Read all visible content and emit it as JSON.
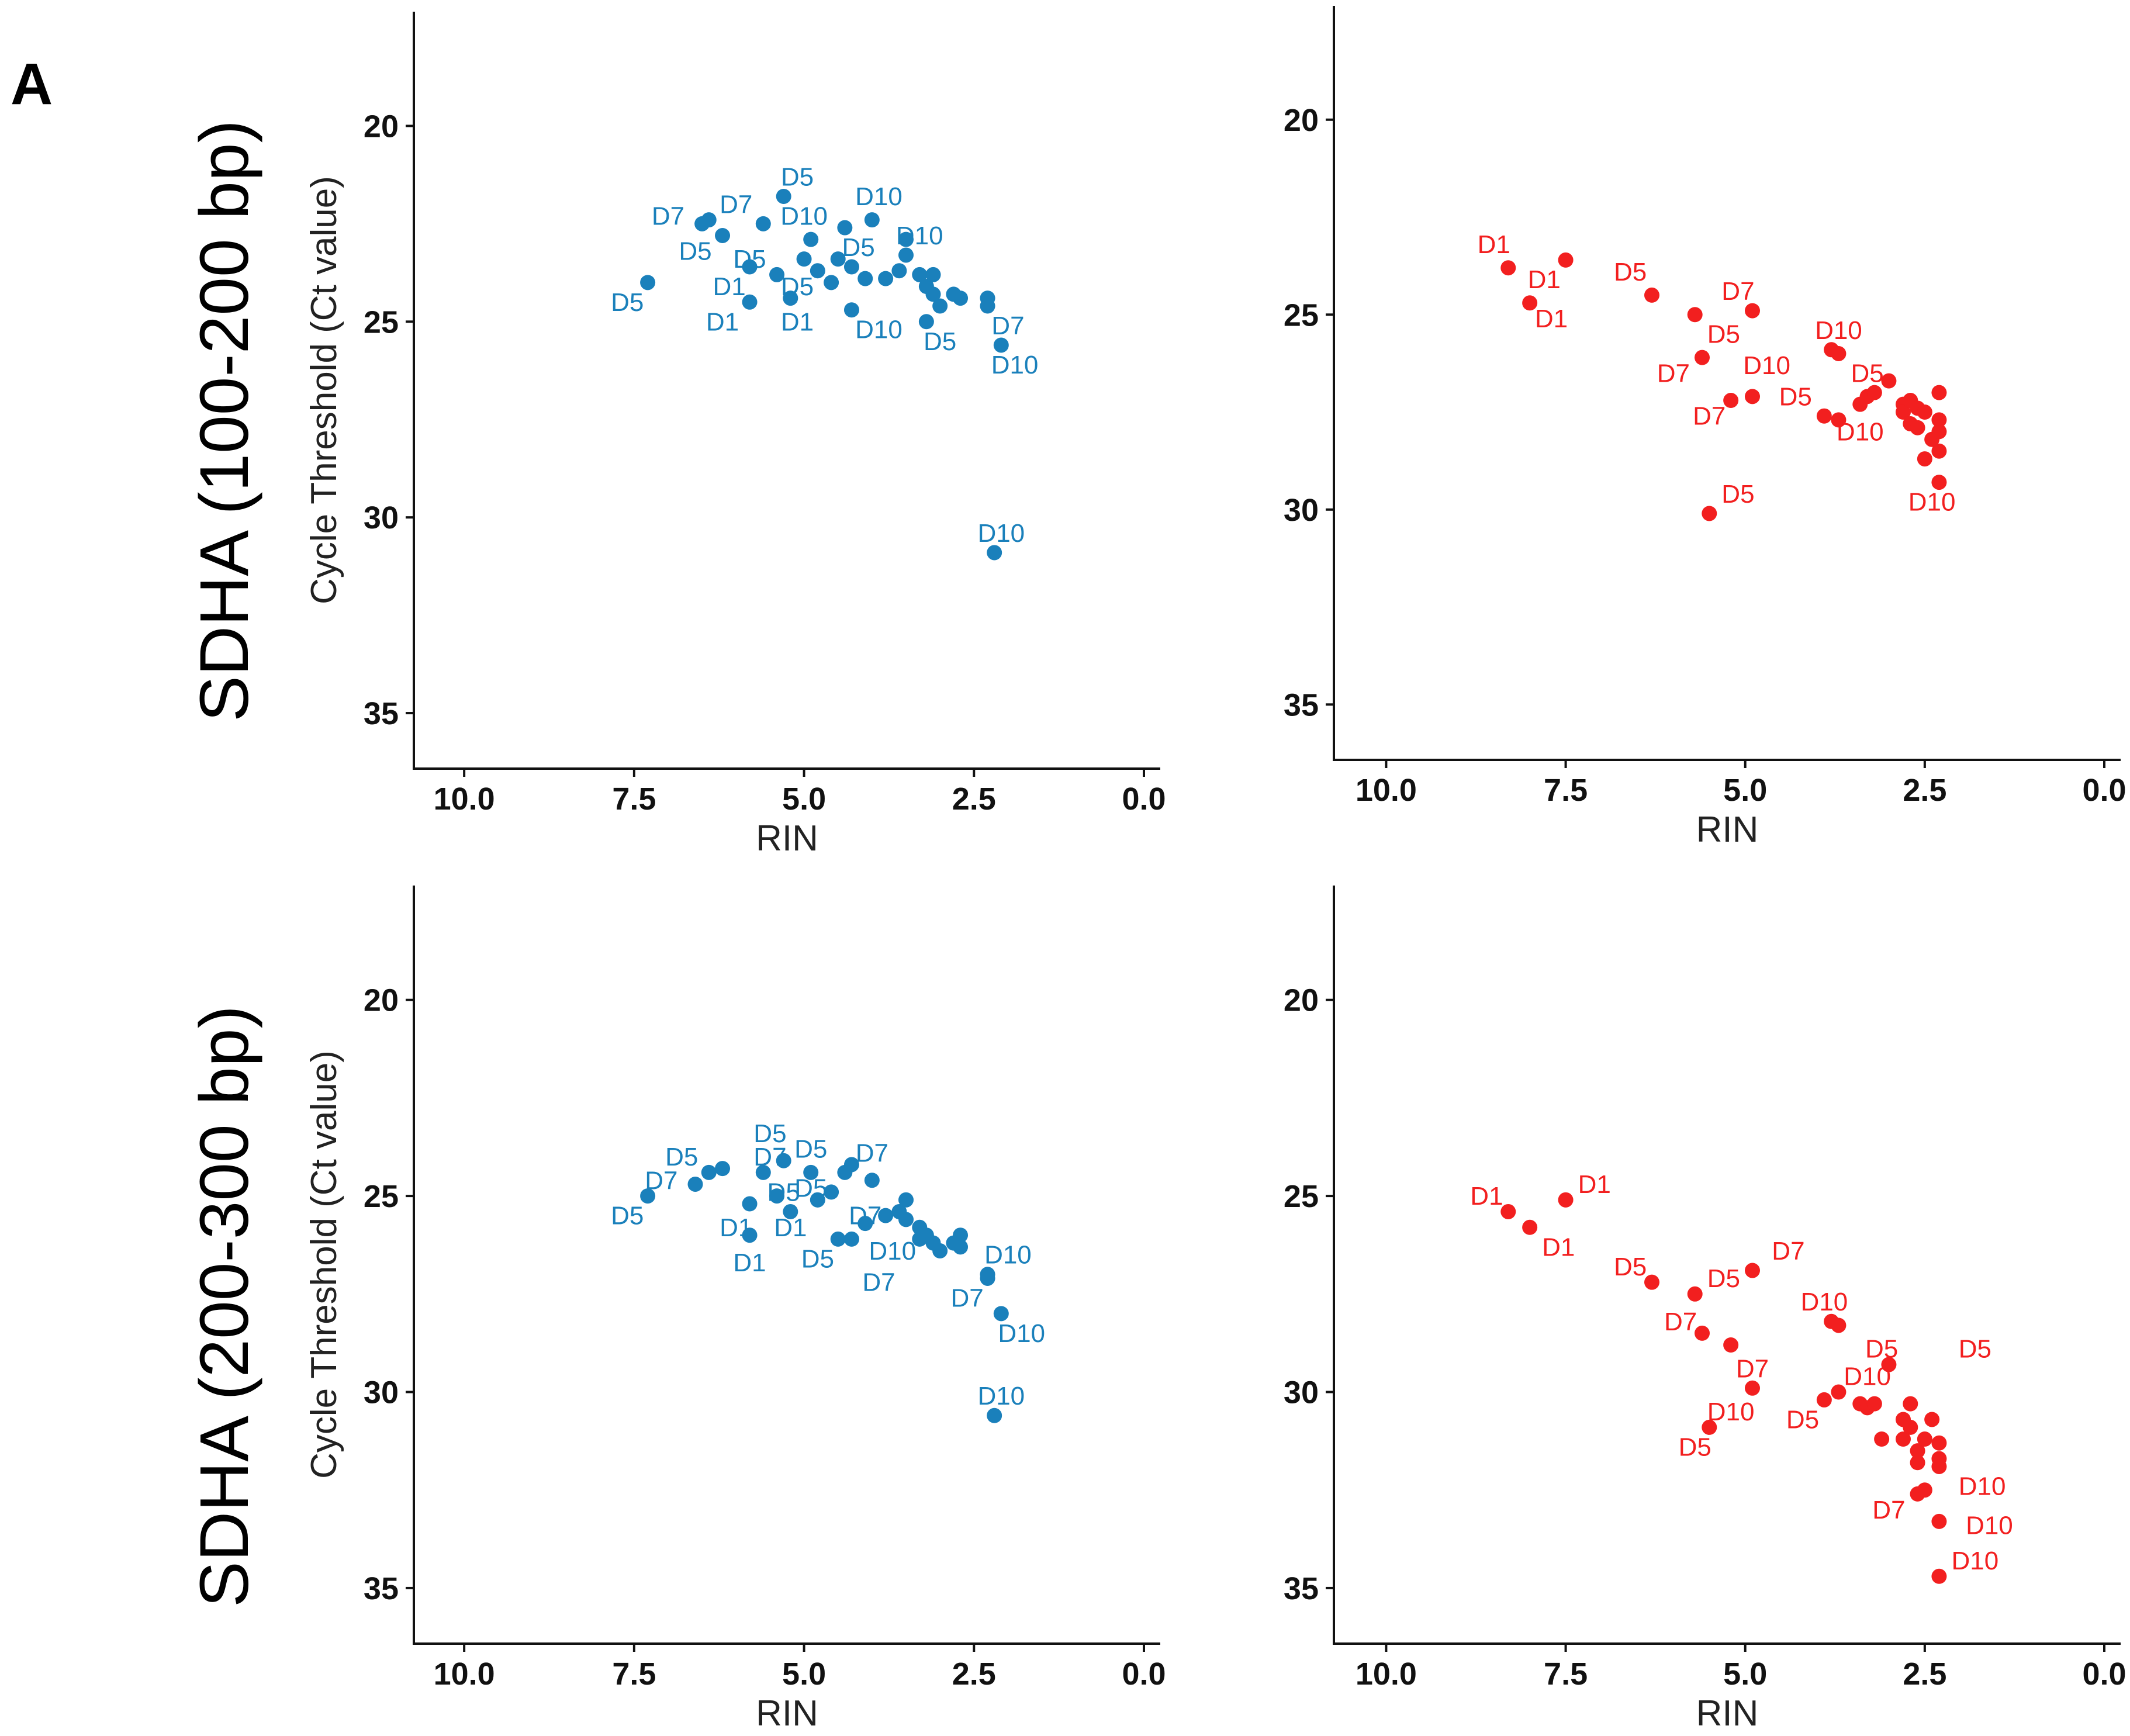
{
  "figure": {
    "panel_letter": "A",
    "row_titles": [
      "SDHA (100-200 bp)",
      "SDHA (200-300 bp)"
    ],
    "colors": {
      "blue": "#1a80bb",
      "red": "#f21f1f"
    }
  },
  "chart_data": [
    {
      "type": "scatter",
      "row": "SDHA (100-200 bp)",
      "color": "#1a80bb",
      "xlabel": "RIN",
      "ylabel": "Cycle Threshold (Ct value)",
      "xlim": [
        0,
        10.5
      ],
      "ylim": [
        17.5,
        36
      ],
      "y_reversed": true,
      "x_reversed": true,
      "xticks": [
        10.0,
        7.5,
        5.0,
        2.5,
        0.0
      ],
      "xtick_labels": [
        "10.0",
        "7.5",
        "5.0",
        "2.5",
        "0.0"
      ],
      "yticks": [
        20,
        25,
        30,
        35
      ],
      "ytick_labels": [
        "20",
        "25",
        "30",
        "35"
      ],
      "points": [
        [
          7.3,
          24.0
        ],
        [
          6.5,
          22.5
        ],
        [
          6.4,
          22.4
        ],
        [
          6.2,
          22.8
        ],
        [
          5.8,
          23.6
        ],
        [
          5.8,
          24.5
        ],
        [
          5.6,
          22.5
        ],
        [
          5.4,
          23.8
        ],
        [
          5.3,
          21.8
        ],
        [
          5.2,
          24.4
        ],
        [
          5.0,
          23.4
        ],
        [
          4.9,
          22.9
        ],
        [
          4.8,
          23.7
        ],
        [
          4.6,
          24.0
        ],
        [
          4.5,
          23.4
        ],
        [
          4.4,
          22.6
        ],
        [
          4.3,
          23.6
        ],
        [
          4.3,
          24.7
        ],
        [
          4.1,
          23.9
        ],
        [
          4.0,
          22.4
        ],
        [
          3.8,
          23.9
        ],
        [
          3.6,
          23.7
        ],
        [
          3.5,
          22.9
        ],
        [
          3.5,
          23.3
        ],
        [
          3.3,
          23.8
        ],
        [
          3.2,
          24.1
        ],
        [
          3.2,
          25.0
        ],
        [
          3.1,
          23.8
        ],
        [
          3.1,
          24.3
        ],
        [
          3.0,
          24.6
        ],
        [
          2.8,
          24.3
        ],
        [
          2.7,
          24.4
        ],
        [
          2.3,
          24.4
        ],
        [
          2.3,
          24.6
        ],
        [
          2.1,
          25.6
        ],
        [
          2.2,
          30.9
        ]
      ],
      "labels": [
        {
          "text": "D5",
          "x": 7.6,
          "y": 24.5
        },
        {
          "text": "D7",
          "x": 7.0,
          "y": 22.3
        },
        {
          "text": "D5",
          "x": 6.6,
          "y": 23.2
        },
        {
          "text": "D7",
          "x": 6.0,
          "y": 22.0
        },
        {
          "text": "D1",
          "x": 6.1,
          "y": 24.1
        },
        {
          "text": "D1",
          "x": 6.2,
          "y": 25.0
        },
        {
          "text": "D5",
          "x": 5.8,
          "y": 23.4
        },
        {
          "text": "D5",
          "x": 5.1,
          "y": 21.3
        },
        {
          "text": "D10",
          "x": 5.0,
          "y": 22.3
        },
        {
          "text": "D5",
          "x": 5.1,
          "y": 24.1
        },
        {
          "text": "D1",
          "x": 5.1,
          "y": 25.0
        },
        {
          "text": "D5",
          "x": 4.2,
          "y": 23.1
        },
        {
          "text": "D10",
          "x": 3.9,
          "y": 21.8
        },
        {
          "text": "D10",
          "x": 3.9,
          "y": 25.2
        },
        {
          "text": "D10",
          "x": 3.3,
          "y": 22.8
        },
        {
          "text": "D5",
          "x": 3.0,
          "y": 25.5
        },
        {
          "text": "D7",
          "x": 2.0,
          "y": 25.1
        },
        {
          "text": "D10",
          "x": 1.9,
          "y": 26.1
        },
        {
          "text": "D10",
          "x": 2.1,
          "y": 30.4
        }
      ]
    },
    {
      "type": "scatter",
      "row": "SDHA (100-200 bp)",
      "color": "#f21f1f",
      "xlabel": "RIN",
      "ylabel": "",
      "xlim": [
        0,
        10.5
      ],
      "ylim": [
        17.5,
        36
      ],
      "y_reversed": true,
      "x_reversed": true,
      "xticks": [
        10.0,
        7.5,
        5.0,
        2.5,
        0.0
      ],
      "xtick_labels": [
        "10.0",
        "7.5",
        "5.0",
        "2.5",
        "0.0"
      ],
      "yticks": [
        20,
        25,
        30,
        35
      ],
      "ytick_labels": [
        "20",
        "25",
        "30",
        "35"
      ],
      "points": [
        [
          8.3,
          23.8
        ],
        [
          8.0,
          24.7
        ],
        [
          7.5,
          23.6
        ],
        [
          6.3,
          24.5
        ],
        [
          5.7,
          25.0
        ],
        [
          5.6,
          26.1
        ],
        [
          5.5,
          30.1
        ],
        [
          5.2,
          27.2
        ],
        [
          4.9,
          27.1
        ],
        [
          4.9,
          24.9
        ],
        [
          3.9,
          27.6
        ],
        [
          3.8,
          25.9
        ],
        [
          3.7,
          26.0
        ],
        [
          3.7,
          27.7
        ],
        [
          3.4,
          27.3
        ],
        [
          3.3,
          27.1
        ],
        [
          3.2,
          27.0
        ],
        [
          3.0,
          26.7
        ],
        [
          2.8,
          27.3
        ],
        [
          2.8,
          27.5
        ],
        [
          2.7,
          27.2
        ],
        [
          2.7,
          27.8
        ],
        [
          2.6,
          27.4
        ],
        [
          2.6,
          27.9
        ],
        [
          2.5,
          28.7
        ],
        [
          2.5,
          27.5
        ],
        [
          2.4,
          28.2
        ],
        [
          2.3,
          27.0
        ],
        [
          2.3,
          27.7
        ],
        [
          2.3,
          28.0
        ],
        [
          2.3,
          28.5
        ],
        [
          2.3,
          29.3
        ]
      ],
      "labels": [
        {
          "text": "D1",
          "x": 8.5,
          "y": 23.2
        },
        {
          "text": "D1",
          "x": 7.8,
          "y": 24.1
        },
        {
          "text": "D1",
          "x": 7.7,
          "y": 25.1
        },
        {
          "text": "D5",
          "x": 6.6,
          "y": 23.9
        },
        {
          "text": "D7",
          "x": 5.1,
          "y": 24.4
        },
        {
          "text": "D5",
          "x": 5.3,
          "y": 25.5
        },
        {
          "text": "D7",
          "x": 6.0,
          "y": 26.5
        },
        {
          "text": "D10",
          "x": 4.7,
          "y": 26.3
        },
        {
          "text": "D7",
          "x": 5.5,
          "y": 27.6
        },
        {
          "text": "D10",
          "x": 3.7,
          "y": 25.4
        },
        {
          "text": "D5",
          "x": 4.3,
          "y": 27.1
        },
        {
          "text": "D5",
          "x": 3.3,
          "y": 26.5
        },
        {
          "text": "D10",
          "x": 3.4,
          "y": 28.0
        },
        {
          "text": "D5",
          "x": 5.1,
          "y": 29.6
        },
        {
          "text": "D10",
          "x": 2.4,
          "y": 29.8
        }
      ]
    },
    {
      "type": "scatter",
      "row": "SDHA (200-300 bp)",
      "color": "#1a80bb",
      "xlabel": "RIN",
      "ylabel": "Cycle Threshold (Ct value)",
      "xlim": [
        0,
        10.5
      ],
      "ylim": [
        17.5,
        36
      ],
      "y_reversed": true,
      "x_reversed": true,
      "xticks": [
        10.0,
        7.5,
        5.0,
        2.5,
        0.0
      ],
      "xtick_labels": [
        "10.0",
        "7.5",
        "5.0",
        "2.5",
        "0.0"
      ],
      "yticks": [
        20,
        25,
        30,
        35
      ],
      "ytick_labels": [
        "20",
        "25",
        "30",
        "35"
      ],
      "points": [
        [
          7.3,
          25.0
        ],
        [
          6.6,
          24.7
        ],
        [
          6.4,
          24.4
        ],
        [
          6.2,
          24.3
        ],
        [
          5.8,
          25.2
        ],
        [
          5.8,
          26.0
        ],
        [
          5.6,
          24.4
        ],
        [
          5.4,
          25.0
        ],
        [
          5.3,
          24.1
        ],
        [
          5.2,
          25.4
        ],
        [
          4.9,
          24.4
        ],
        [
          4.8,
          25.1
        ],
        [
          4.6,
          24.9
        ],
        [
          4.5,
          26.1
        ],
        [
          4.4,
          24.4
        ],
        [
          4.3,
          24.2
        ],
        [
          4.3,
          26.1
        ],
        [
          4.1,
          25.7
        ],
        [
          4.0,
          24.6
        ],
        [
          3.8,
          25.5
        ],
        [
          3.6,
          25.4
        ],
        [
          3.5,
          25.1
        ],
        [
          3.5,
          25.6
        ],
        [
          3.3,
          25.8
        ],
        [
          3.3,
          26.1
        ],
        [
          3.2,
          26.0
        ],
        [
          3.1,
          26.2
        ],
        [
          3.0,
          26.4
        ],
        [
          2.8,
          26.2
        ],
        [
          2.7,
          26.0
        ],
        [
          2.7,
          26.3
        ],
        [
          2.3,
          27.1
        ],
        [
          2.3,
          27.0
        ],
        [
          2.1,
          28.0
        ],
        [
          2.2,
          30.6
        ]
      ],
      "labels": [
        {
          "text": "D5",
          "x": 7.6,
          "y": 25.5
        },
        {
          "text": "D7",
          "x": 7.1,
          "y": 24.6
        },
        {
          "text": "D5",
          "x": 6.8,
          "y": 24.0
        },
        {
          "text": "D5",
          "x": 5.5,
          "y": 23.4
        },
        {
          "text": "D7",
          "x": 5.5,
          "y": 24.0
        },
        {
          "text": "D5",
          "x": 4.9,
          "y": 23.8
        },
        {
          "text": "D7",
          "x": 4.0,
          "y": 23.9
        },
        {
          "text": "D1",
          "x": 6.0,
          "y": 25.8
        },
        {
          "text": "D5",
          "x": 5.3,
          "y": 24.9
        },
        {
          "text": "D1",
          "x": 5.2,
          "y": 25.8
        },
        {
          "text": "D1",
          "x": 5.8,
          "y": 26.7
        },
        {
          "text": "D5",
          "x": 4.9,
          "y": 24.8
        },
        {
          "text": "D7",
          "x": 4.1,
          "y": 25.5
        },
        {
          "text": "D5",
          "x": 4.8,
          "y": 26.6
        },
        {
          "text": "D10",
          "x": 3.7,
          "y": 26.4
        },
        {
          "text": "D7",
          "x": 3.9,
          "y": 27.2
        },
        {
          "text": "D10",
          "x": 2.0,
          "y": 26.5
        },
        {
          "text": "D7",
          "x": 2.6,
          "y": 27.6
        },
        {
          "text": "D10",
          "x": 1.8,
          "y": 28.5
        },
        {
          "text": "D10",
          "x": 2.1,
          "y": 30.1
        }
      ]
    },
    {
      "type": "scatter",
      "row": "SDHA (200-300 bp)",
      "color": "#f21f1f",
      "xlabel": "RIN",
      "ylabel": "",
      "xlim": [
        0,
        10.5
      ],
      "ylim": [
        17.5,
        36
      ],
      "y_reversed": true,
      "x_reversed": true,
      "xticks": [
        10.0,
        7.5,
        5.0,
        2.5,
        0.0
      ],
      "xtick_labels": [
        "10.0",
        "7.5",
        "5.0",
        "2.5",
        "0.0"
      ],
      "yticks": [
        20,
        25,
        30,
        35
      ],
      "ytick_labels": [
        "20",
        "25",
        "30",
        "35"
      ],
      "points": [
        [
          8.3,
          25.4
        ],
        [
          8.0,
          25.8
        ],
        [
          7.5,
          25.1
        ],
        [
          6.3,
          27.2
        ],
        [
          5.7,
          27.5
        ],
        [
          5.6,
          28.5
        ],
        [
          5.5,
          30.9
        ],
        [
          5.2,
          28.8
        ],
        [
          4.9,
          29.9
        ],
        [
          4.9,
          26.9
        ],
        [
          3.9,
          30.2
        ],
        [
          3.8,
          28.2
        ],
        [
          3.7,
          28.3
        ],
        [
          3.7,
          30.0
        ],
        [
          3.4,
          30.3
        ],
        [
          3.3,
          30.4
        ],
        [
          3.2,
          30.3
        ],
        [
          3.1,
          31.2
        ],
        [
          3.0,
          29.3
        ],
        [
          2.8,
          30.7
        ],
        [
          2.8,
          31.2
        ],
        [
          2.7,
          30.3
        ],
        [
          2.7,
          30.9
        ],
        [
          2.6,
          31.5
        ],
        [
          2.6,
          31.8
        ],
        [
          2.5,
          31.2
        ],
        [
          2.5,
          32.5
        ],
        [
          2.4,
          30.7
        ],
        [
          2.3,
          31.3
        ],
        [
          2.3,
          31.7
        ],
        [
          2.3,
          31.9
        ],
        [
          2.6,
          32.6
        ],
        [
          2.3,
          33.3
        ],
        [
          2.3,
          34.7
        ]
      ],
      "labels": [
        {
          "text": "D1",
          "x": 8.6,
          "y": 25.0
        },
        {
          "text": "D1",
          "x": 7.1,
          "y": 24.7
        },
        {
          "text": "D1",
          "x": 7.6,
          "y": 26.3
        },
        {
          "text": "D5",
          "x": 6.6,
          "y": 26.8
        },
        {
          "text": "D5",
          "x": 5.3,
          "y": 27.1
        },
        {
          "text": "D7",
          "x": 5.9,
          "y": 28.2
        },
        {
          "text": "D7",
          "x": 4.4,
          "y": 26.4
        },
        {
          "text": "D10",
          "x": 3.9,
          "y": 27.7
        },
        {
          "text": "D7",
          "x": 4.9,
          "y": 29.4
        },
        {
          "text": "D10",
          "x": 5.2,
          "y": 30.5
        },
        {
          "text": "D5",
          "x": 5.7,
          "y": 31.4
        },
        {
          "text": "D10",
          "x": 3.3,
          "y": 29.6
        },
        {
          "text": "D5",
          "x": 4.2,
          "y": 30.7
        },
        {
          "text": "D5",
          "x": 3.1,
          "y": 28.9
        },
        {
          "text": "D5",
          "x": 1.8,
          "y": 28.9
        },
        {
          "text": "D10",
          "x": 1.7,
          "y": 32.4
        },
        {
          "text": "D7",
          "x": 3.0,
          "y": 33.0
        },
        {
          "text": "D10",
          "x": 1.6,
          "y": 33.4
        },
        {
          "text": "D10",
          "x": 1.8,
          "y": 34.3
        }
      ]
    }
  ]
}
